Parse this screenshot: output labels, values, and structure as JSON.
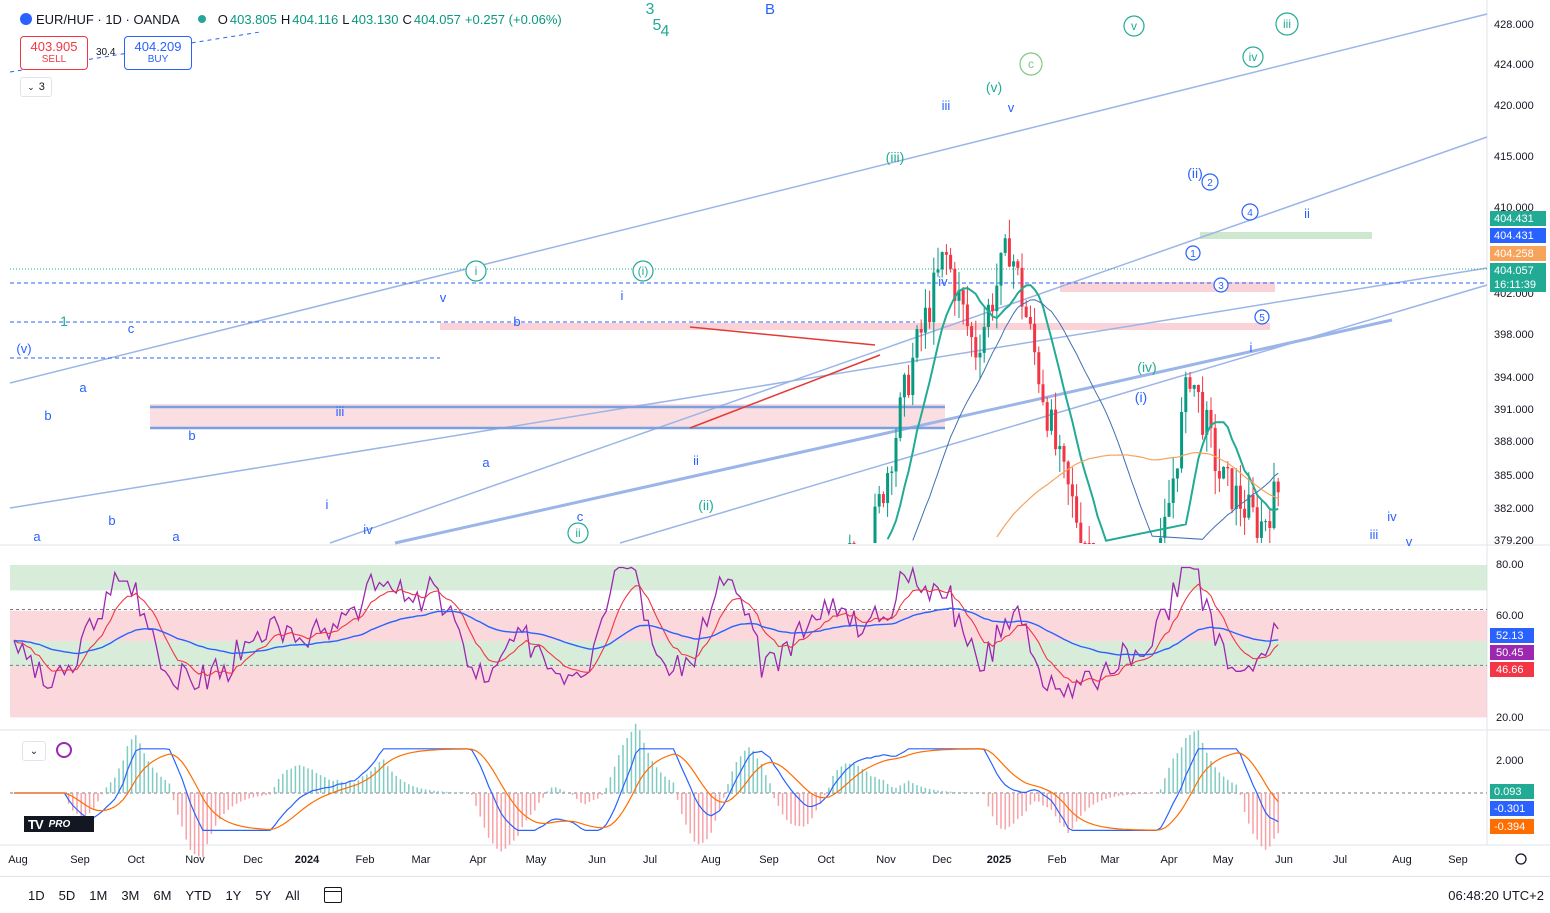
{
  "header": {
    "symbol": "EUR/HUF · 1D · OANDA",
    "open_label": "O",
    "open": "403.805",
    "high_label": "H",
    "high": "404.116",
    "low_label": "L",
    "low": "403.130",
    "close_label": "C",
    "close": "404.057",
    "change": "+0.257 (+0.06%)"
  },
  "trade": {
    "sell_price": "403.905",
    "sell_label": "SELL",
    "buy_price": "404.209",
    "buy_label": "BUY",
    "spread": "30.4"
  },
  "indicators_collapse": {
    "count": "3"
  },
  "colors": {
    "up": "#089981",
    "down": "#f23645",
    "ema_green": "#22ab94",
    "ma_blue": "#2962ff",
    "ma_orange": "#f7a35c",
    "channel": "#9bb5e8",
    "rsi": "#9c27b0",
    "rsi_ma": "#f23645",
    "macd": "#2962ff",
    "signal": "#ff6d00"
  },
  "price_axis": {
    "ticks": [
      "428.000",
      "424.000",
      "420.000",
      "415.000",
      "410.000",
      "402.000",
      "398.000",
      "394.000",
      "391.000",
      "388.000",
      "385.000",
      "382.000",
      "379.200"
    ],
    "badges": [
      {
        "text": "404.431",
        "color": "#22ab94"
      },
      {
        "text": "404.431",
        "color": "#2962ff"
      },
      {
        "text": "404.258",
        "color": "#f7a35c"
      },
      {
        "text": "404.057",
        "color": "#22ab94"
      },
      {
        "text": "16:11:39",
        "color": "#22ab94"
      }
    ]
  },
  "rsi_axis": {
    "ticks": [
      "80.00",
      "60.00",
      "20.00"
    ],
    "badges": [
      {
        "text": "52.13",
        "color": "#2962ff"
      },
      {
        "text": "50.45",
        "color": "#9c27b0"
      },
      {
        "text": "46.66",
        "color": "#f23645"
      }
    ]
  },
  "macd_axis": {
    "ticks": [
      "2.000"
    ],
    "badges": [
      {
        "text": "0.093",
        "color": "#22ab94"
      },
      {
        "text": "-0.301",
        "color": "#2962ff"
      },
      {
        "text": "-0.394",
        "color": "#ff6d00"
      }
    ]
  },
  "time_axis": [
    "Aug",
    "Sep",
    "Oct",
    "Nov",
    "Dec",
    "2024",
    "Feb",
    "Mar",
    "Apr",
    "May",
    "Jun",
    "Jul",
    "Aug",
    "Sep",
    "Oct",
    "Nov",
    "Dec",
    "2025",
    "Feb",
    "Mar",
    "Apr",
    "May",
    "Jun",
    "Jul",
    "Aug",
    "Sep"
  ],
  "wave_labels": [
    {
      "t": "3",
      "c": "#22ab94"
    },
    {
      "t": "5",
      "c": "#22ab94"
    },
    {
      "t": "4",
      "c": "#22ab94"
    },
    {
      "t": "B",
      "c": "#2962ff"
    },
    {
      "t": "(v)",
      "c": "#2962ff"
    },
    {
      "t": "a",
      "c": "#2962ff"
    },
    {
      "t": "b",
      "c": "#2962ff"
    },
    {
      "t": "c",
      "c": "#2962ff"
    },
    {
      "t": "b",
      "c": "#2962ff"
    },
    {
      "t": "b",
      "c": "#2962ff"
    },
    {
      "t": "a",
      "c": "#2962ff"
    },
    {
      "t": "a",
      "c": "#2962ff"
    },
    {
      "t": "1",
      "c": "#22ab94"
    },
    {
      "t": "iii",
      "c": "#2962ff"
    },
    {
      "t": "i",
      "c": "#2962ff"
    },
    {
      "t": "iv",
      "c": "#2962ff"
    },
    {
      "t": "v",
      "c": "#2962ff"
    },
    {
      "t": "b",
      "c": "#2962ff"
    },
    {
      "t": "a",
      "c": "#2962ff"
    },
    {
      "t": "c",
      "c": "#2962ff"
    },
    {
      "t": "i",
      "c": "#2962ff"
    },
    {
      "t": "ii",
      "c": "#2962ff"
    },
    {
      "t": "(ii)",
      "c": "#22ab94"
    },
    {
      "t": "(iii)",
      "c": "#22ab94"
    },
    {
      "t": "iii",
      "c": "#2962ff"
    },
    {
      "t": "(v)",
      "c": "#22ab94"
    },
    {
      "t": "v",
      "c": "#2962ff"
    },
    {
      "t": "iv",
      "c": "#2962ff"
    },
    {
      "t": "(iv)",
      "c": "#22ab94"
    },
    {
      "t": "(i)",
      "c": "#2962ff"
    },
    {
      "t": "(ii)",
      "c": "#2962ff"
    },
    {
      "t": "ii",
      "c": "#2962ff"
    },
    {
      "t": "i",
      "c": "#2962ff"
    },
    {
      "t": "iv",
      "c": "#2962ff"
    },
    {
      "t": "iii",
      "c": "#2962ff"
    },
    {
      "t": "v",
      "c": "#2962ff"
    }
  ],
  "circled_labels": [
    {
      "t": "i",
      "c": "#22ab94"
    },
    {
      "t": "(i)",
      "c": "#22ab94"
    },
    {
      "t": "ii",
      "c": "#22ab94"
    },
    {
      "t": "c",
      "c": "#81c784"
    },
    {
      "t": "v",
      "c": "#22ab94"
    },
    {
      "t": "iii",
      "c": "#22ab94"
    },
    {
      "t": "iv",
      "c": "#22ab94"
    },
    {
      "t": "2",
      "c": "#2962ff"
    },
    {
      "t": "4",
      "c": "#2962ff"
    },
    {
      "t": "1",
      "c": "#2962ff"
    },
    {
      "t": "3",
      "c": "#2962ff"
    },
    {
      "t": "5",
      "c": "#2962ff"
    }
  ],
  "logo": {
    "mark": "TV",
    "text": "PRO"
  },
  "timeframes": [
    "1D",
    "5D",
    "1M",
    "3M",
    "6M",
    "YTD",
    "1Y",
    "5Y",
    "All"
  ],
  "clock": "06:48:20 UTC+2"
}
